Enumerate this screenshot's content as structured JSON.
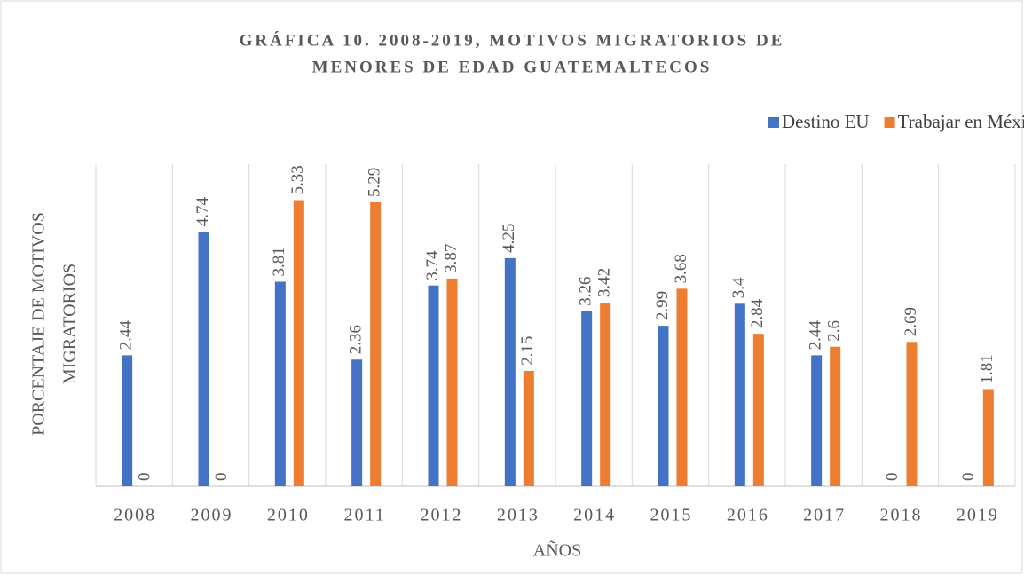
{
  "chart_data": {
    "type": "bar",
    "title": [
      "GRÁFICA 10. 2008-2019, MOTIVOS MIGRATORIOS DE",
      "MENORES DE EDAD GUATEMALTECOS"
    ],
    "x_label": "AÑOS",
    "y_label": [
      "PORCENTAJE DE MOTIVOS",
      "MIGRATORIOS"
    ],
    "categories": [
      "2008",
      "2009",
      "2010",
      "2011",
      "2012",
      "2013",
      "2014",
      "2015",
      "2016",
      "2017",
      "2018",
      "2019"
    ],
    "series": [
      {
        "name": "Destino EU",
        "color": "#4472c4",
        "values": [
          2.44,
          4.74,
          3.81,
          2.36,
          3.74,
          4.25,
          3.26,
          2.99,
          3.4,
          2.44,
          0,
          0
        ]
      },
      {
        "name": "Trabajar en México",
        "color": "#ed7d31",
        "values": [
          0,
          0,
          5.33,
          5.29,
          3.87,
          2.15,
          3.42,
          3.68,
          2.84,
          2.6,
          2.69,
          1.81
        ]
      }
    ],
    "ylim": [
      0,
      6
    ],
    "legend": "top-right"
  }
}
